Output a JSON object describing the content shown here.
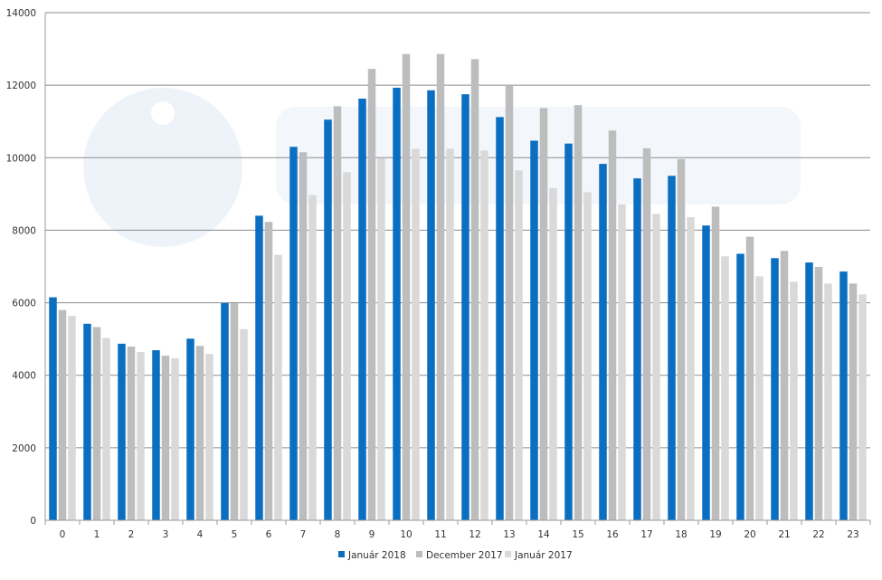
{
  "chart_data": {
    "type": "bar",
    "categories": [
      "0",
      "1",
      "2",
      "3",
      "4",
      "5",
      "6",
      "7",
      "8",
      "9",
      "10",
      "11",
      "12",
      "13",
      "14",
      "15",
      "16",
      "17",
      "18",
      "19",
      "20",
      "21",
      "22",
      "23"
    ],
    "series": [
      {
        "name": "Január 2018",
        "color": "#0b6fc1",
        "values": [
          6150,
          5420,
          4870,
          4690,
          5010,
          5990,
          8400,
          10300,
          11050,
          11630,
          11930,
          11860,
          11750,
          11120,
          10470,
          10390,
          9830,
          9430,
          9500,
          8130,
          7350,
          7230,
          7110,
          6860
        ]
      },
      {
        "name": "December 2017",
        "color": "#bdbdbd",
        "values": [
          5800,
          5330,
          4790,
          4540,
          4810,
          5990,
          8230,
          10150,
          11420,
          12450,
          12860,
          12860,
          12720,
          12000,
          11370,
          11450,
          10750,
          10260,
          9960,
          8650,
          7820,
          7430,
          6990,
          6530
        ]
      },
      {
        "name": "Január 2017",
        "color": "#d9d9d9",
        "values": [
          5640,
          5030,
          4640,
          4470,
          4590,
          5270,
          7320,
          8970,
          9600,
          9990,
          10240,
          10250,
          10200,
          9650,
          9160,
          9050,
          8710,
          8450,
          8360,
          7280,
          6730,
          6580,
          6530,
          6230
        ]
      }
    ],
    "y_ticks": [
      "0",
      "2000",
      "4000",
      "6000",
      "8000",
      "10000",
      "12000",
      "14000"
    ],
    "ylim": [
      0,
      14000
    ],
    "grid": true,
    "legend_position": "bottom-center"
  }
}
